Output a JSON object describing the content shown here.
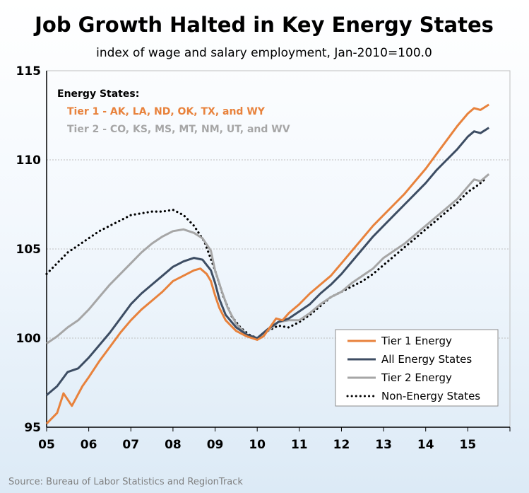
{
  "chart_data": {
    "type": "line",
    "title": "Job Growth Halted in Key Energy States",
    "subtitle": "index of wage and salary employment, Jan-2010=100.0",
    "source": "Source: Bureau of Labor Statistics and RegionTrack",
    "ylim": [
      95,
      115
    ],
    "yticks": [
      95,
      100,
      105,
      110,
      115
    ],
    "xlim": [
      2005,
      2016
    ],
    "x_tick_labels": [
      "05",
      "06",
      "07",
      "08",
      "09",
      "10",
      "11",
      "12",
      "13",
      "14",
      "15"
    ],
    "grid": true,
    "legend_position": "bottom-right",
    "annotation": {
      "heading": "Energy States:",
      "tier1": "Tier 1 - AK, LA, ND, OK, TX, and WY",
      "tier2": "Tier 2 - CO, KS, MS, MT, NM, UT, and WV"
    },
    "colors": {
      "tier1": "#e8823c",
      "all": "#3d4d63",
      "tier2": "#a6a6a6",
      "non": "#000000"
    },
    "series": [
      {
        "name": "Tier 1 Energy",
        "key": "tier1",
        "style": "solid",
        "points": [
          [
            2005.0,
            95.2
          ],
          [
            2005.25,
            95.8
          ],
          [
            2005.4,
            96.9
          ],
          [
            2005.6,
            96.2
          ],
          [
            2005.85,
            97.3
          ],
          [
            2006.0,
            97.8
          ],
          [
            2006.25,
            98.7
          ],
          [
            2006.5,
            99.5
          ],
          [
            2006.75,
            100.3
          ],
          [
            2007.0,
            101.0
          ],
          [
            2007.25,
            101.6
          ],
          [
            2007.5,
            102.1
          ],
          [
            2007.75,
            102.6
          ],
          [
            2008.0,
            103.2
          ],
          [
            2008.25,
            103.5
          ],
          [
            2008.5,
            103.8
          ],
          [
            2008.65,
            103.9
          ],
          [
            2008.8,
            103.6
          ],
          [
            2008.9,
            103.2
          ],
          [
            2009.0,
            102.4
          ],
          [
            2009.1,
            101.7
          ],
          [
            2009.25,
            101.0
          ],
          [
            2009.5,
            100.4
          ],
          [
            2009.75,
            100.1
          ],
          [
            2010.0,
            99.9
          ],
          [
            2010.15,
            100.1
          ],
          [
            2010.3,
            100.6
          ],
          [
            2010.45,
            101.1
          ],
          [
            2010.6,
            101.0
          ],
          [
            2010.75,
            101.4
          ],
          [
            2011.0,
            101.9
          ],
          [
            2011.25,
            102.5
          ],
          [
            2011.5,
            103.0
          ],
          [
            2011.75,
            103.5
          ],
          [
            2012.0,
            104.2
          ],
          [
            2012.25,
            104.9
          ],
          [
            2012.5,
            105.6
          ],
          [
            2012.75,
            106.3
          ],
          [
            2013.0,
            106.9
          ],
          [
            2013.25,
            107.5
          ],
          [
            2013.5,
            108.1
          ],
          [
            2013.75,
            108.8
          ],
          [
            2014.0,
            109.5
          ],
          [
            2014.25,
            110.3
          ],
          [
            2014.5,
            111.1
          ],
          [
            2014.75,
            111.9
          ],
          [
            2015.0,
            112.6
          ],
          [
            2015.15,
            112.9
          ],
          [
            2015.3,
            112.8
          ],
          [
            2015.5,
            113.1
          ]
        ]
      },
      {
        "name": "All Energy States",
        "key": "all",
        "style": "solid",
        "points": [
          [
            2005.0,
            96.8
          ],
          [
            2005.25,
            97.3
          ],
          [
            2005.5,
            98.1
          ],
          [
            2005.75,
            98.3
          ],
          [
            2006.0,
            98.9
          ],
          [
            2006.25,
            99.6
          ],
          [
            2006.5,
            100.3
          ],
          [
            2006.75,
            101.1
          ],
          [
            2007.0,
            101.9
          ],
          [
            2007.25,
            102.5
          ],
          [
            2007.5,
            103.0
          ],
          [
            2007.75,
            103.5
          ],
          [
            2008.0,
            104.0
          ],
          [
            2008.25,
            104.3
          ],
          [
            2008.5,
            104.5
          ],
          [
            2008.7,
            104.4
          ],
          [
            2008.9,
            103.8
          ],
          [
            2009.0,
            103.1
          ],
          [
            2009.1,
            102.2
          ],
          [
            2009.25,
            101.3
          ],
          [
            2009.5,
            100.6
          ],
          [
            2009.75,
            100.2
          ],
          [
            2010.0,
            100.0
          ],
          [
            2010.25,
            100.5
          ],
          [
            2010.5,
            100.9
          ],
          [
            2010.75,
            101.1
          ],
          [
            2011.0,
            101.5
          ],
          [
            2011.25,
            101.9
          ],
          [
            2011.5,
            102.5
          ],
          [
            2011.75,
            103.0
          ],
          [
            2012.0,
            103.6
          ],
          [
            2012.25,
            104.3
          ],
          [
            2012.5,
            105.0
          ],
          [
            2012.75,
            105.7
          ],
          [
            2013.0,
            106.3
          ],
          [
            2013.25,
            106.9
          ],
          [
            2013.5,
            107.5
          ],
          [
            2013.75,
            108.1
          ],
          [
            2014.0,
            108.7
          ],
          [
            2014.25,
            109.4
          ],
          [
            2014.5,
            110.0
          ],
          [
            2014.75,
            110.6
          ],
          [
            2015.0,
            111.3
          ],
          [
            2015.15,
            111.6
          ],
          [
            2015.3,
            111.5
          ],
          [
            2015.5,
            111.8
          ]
        ]
      },
      {
        "name": "Tier 2 Energy",
        "key": "tier2",
        "style": "solid",
        "points": [
          [
            2005.0,
            99.7
          ],
          [
            2005.25,
            100.1
          ],
          [
            2005.5,
            100.6
          ],
          [
            2005.75,
            101.0
          ],
          [
            2006.0,
            101.6
          ],
          [
            2006.25,
            102.3
          ],
          [
            2006.5,
            103.0
          ],
          [
            2006.75,
            103.6
          ],
          [
            2007.0,
            104.2
          ],
          [
            2007.25,
            104.8
          ],
          [
            2007.5,
            105.3
          ],
          [
            2007.75,
            105.7
          ],
          [
            2008.0,
            106.0
          ],
          [
            2008.25,
            106.1
          ],
          [
            2008.5,
            105.9
          ],
          [
            2008.7,
            105.6
          ],
          [
            2008.9,
            104.9
          ],
          [
            2009.0,
            103.8
          ],
          [
            2009.15,
            102.7
          ],
          [
            2009.3,
            101.7
          ],
          [
            2009.5,
            100.8
          ],
          [
            2009.75,
            100.2
          ],
          [
            2010.0,
            100.0
          ],
          [
            2010.25,
            100.4
          ],
          [
            2010.5,
            100.9
          ],
          [
            2010.75,
            101.0
          ],
          [
            2011.0,
            101.0
          ],
          [
            2011.25,
            101.4
          ],
          [
            2011.5,
            101.9
          ],
          [
            2011.75,
            102.3
          ],
          [
            2012.0,
            102.6
          ],
          [
            2012.25,
            103.1
          ],
          [
            2012.5,
            103.5
          ],
          [
            2012.75,
            103.9
          ],
          [
            2013.0,
            104.5
          ],
          [
            2013.25,
            104.9
          ],
          [
            2013.5,
            105.3
          ],
          [
            2013.75,
            105.8
          ],
          [
            2014.0,
            106.3
          ],
          [
            2014.25,
            106.8
          ],
          [
            2014.5,
            107.3
          ],
          [
            2014.75,
            107.8
          ],
          [
            2015.0,
            108.5
          ],
          [
            2015.15,
            108.9
          ],
          [
            2015.3,
            108.8
          ],
          [
            2015.5,
            109.2
          ]
        ]
      },
      {
        "name": "Non-Energy States",
        "key": "non",
        "style": "dotted",
        "points": [
          [
            2005.0,
            103.6
          ],
          [
            2005.25,
            104.2
          ],
          [
            2005.5,
            104.8
          ],
          [
            2005.75,
            105.2
          ],
          [
            2006.0,
            105.6
          ],
          [
            2006.25,
            106.0
          ],
          [
            2006.5,
            106.3
          ],
          [
            2006.75,
            106.6
          ],
          [
            2007.0,
            106.9
          ],
          [
            2007.25,
            107.0
          ],
          [
            2007.5,
            107.1
          ],
          [
            2007.75,
            107.1
          ],
          [
            2008.0,
            107.2
          ],
          [
            2008.25,
            106.9
          ],
          [
            2008.5,
            106.3
          ],
          [
            2008.75,
            105.4
          ],
          [
            2009.0,
            103.8
          ],
          [
            2009.2,
            102.3
          ],
          [
            2009.4,
            101.2
          ],
          [
            2009.6,
            100.6
          ],
          [
            2009.8,
            100.2
          ],
          [
            2010.0,
            100.0
          ],
          [
            2010.25,
            100.4
          ],
          [
            2010.5,
            100.7
          ],
          [
            2010.75,
            100.6
          ],
          [
            2011.0,
            100.9
          ],
          [
            2011.25,
            101.3
          ],
          [
            2011.5,
            101.8
          ],
          [
            2011.75,
            102.3
          ],
          [
            2012.0,
            102.6
          ],
          [
            2012.25,
            102.9
          ],
          [
            2012.5,
            103.2
          ],
          [
            2012.75,
            103.6
          ],
          [
            2013.0,
            104.1
          ],
          [
            2013.25,
            104.6
          ],
          [
            2013.5,
            105.1
          ],
          [
            2013.75,
            105.6
          ],
          [
            2014.0,
            106.1
          ],
          [
            2014.25,
            106.6
          ],
          [
            2014.5,
            107.1
          ],
          [
            2014.75,
            107.6
          ],
          [
            2015.0,
            108.2
          ],
          [
            2015.25,
            108.6
          ],
          [
            2015.4,
            108.9
          ]
        ]
      }
    ],
    "legend_order": [
      "tier1",
      "all",
      "tier2",
      "non"
    ]
  }
}
